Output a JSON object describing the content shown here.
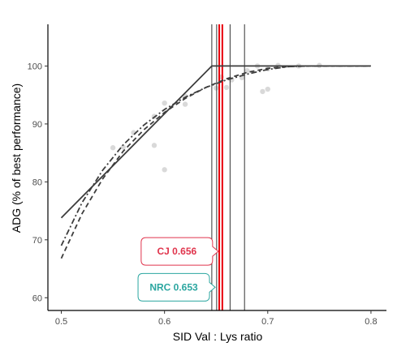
{
  "chart_data": {
    "type": "line",
    "xlabel": "SID Val : Lys ratio",
    "ylabel": "ADG (% of best performance)",
    "xlim": [
      0.487,
      0.815
    ],
    "ylim": [
      57.8,
      107.2
    ],
    "xticks": [
      0.5,
      0.6,
      0.7,
      0.8
    ],
    "yticks": [
      60,
      70,
      80,
      90,
      100
    ],
    "grid": false,
    "series": [
      {
        "style": "solid",
        "x": [
          0.5,
          0.6458,
          0.8
        ],
        "y": [
          73.8,
          100.0,
          100.0
        ]
      },
      {
        "style": "dashed",
        "x": [
          0.5,
          0.52,
          0.54,
          0.56,
          0.58,
          0.6,
          0.62,
          0.64,
          0.66,
          0.68,
          0.7,
          0.72,
          0.74,
          0.76,
          0.8
        ],
        "y": [
          66.8,
          74.5,
          80.5,
          85.3,
          89.0,
          92.0,
          94.4,
          96.3,
          97.8,
          98.9,
          99.6,
          99.9,
          100.0,
          100.0,
          100.0
        ]
      },
      {
        "style": "dotdash",
        "x": [
          0.5,
          0.52,
          0.54,
          0.56,
          0.58,
          0.6,
          0.62,
          0.64,
          0.66,
          0.68,
          0.7,
          0.72,
          0.74,
          0.76,
          0.8
        ],
        "y": [
          69.0,
          76.4,
          82.0,
          86.4,
          89.8,
          92.5,
          94.6,
          96.3,
          97.6,
          98.6,
          99.4,
          99.9,
          100.0,
          100.0,
          100.0
        ]
      }
    ],
    "points": [
      {
        "x": 0.55,
        "y": 85.9
      },
      {
        "x": 0.56,
        "y": 86.0
      },
      {
        "x": 0.57,
        "y": 88.5
      },
      {
        "x": 0.59,
        "y": 91.3
      },
      {
        "x": 0.59,
        "y": 86.3
      },
      {
        "x": 0.6,
        "y": 93.6
      },
      {
        "x": 0.6,
        "y": 82.1
      },
      {
        "x": 0.62,
        "y": 93.4
      },
      {
        "x": 0.62,
        "y": 94.8
      },
      {
        "x": 0.65,
        "y": 96.2
      },
      {
        "x": 0.655,
        "y": 98.1
      },
      {
        "x": 0.66,
        "y": 96.3
      },
      {
        "x": 0.665,
        "y": 97.6
      },
      {
        "x": 0.675,
        "y": 98.0
      },
      {
        "x": 0.68,
        "y": 99.2
      },
      {
        "x": 0.69,
        "y": 100.0
      },
      {
        "x": 0.695,
        "y": 95.6
      },
      {
        "x": 0.7,
        "y": 96.0
      },
      {
        "x": 0.7,
        "y": 99.5
      },
      {
        "x": 0.71,
        "y": 100.1
      },
      {
        "x": 0.73,
        "y": 100.0
      },
      {
        "x": 0.75,
        "y": 100.1
      }
    ],
    "vlines": [
      {
        "x": 0.6458,
        "color": "#333333",
        "width": 1
      },
      {
        "x": 0.6505,
        "color": "#333333",
        "width": 1
      },
      {
        "x": 0.653,
        "color": "#e8000b",
        "width": 2
      },
      {
        "x": 0.656,
        "color": "#e8000b",
        "width": 2
      },
      {
        "x": 0.6635,
        "color": "#333333",
        "width": 1
      },
      {
        "x": 0.6775,
        "color": "#333333",
        "width": 1
      }
    ],
    "annotations": [
      {
        "text": "CJ 0.656",
        "color": "#e0344c",
        "x_ref": 0.656,
        "y": 68.0
      },
      {
        "text": "NRC 0.653",
        "color": "#2ba6a0",
        "x_ref": 0.653,
        "y": 61.8
      }
    ],
    "point_color": "#d9d9d9",
    "line_color": "#3d3d3d"
  }
}
